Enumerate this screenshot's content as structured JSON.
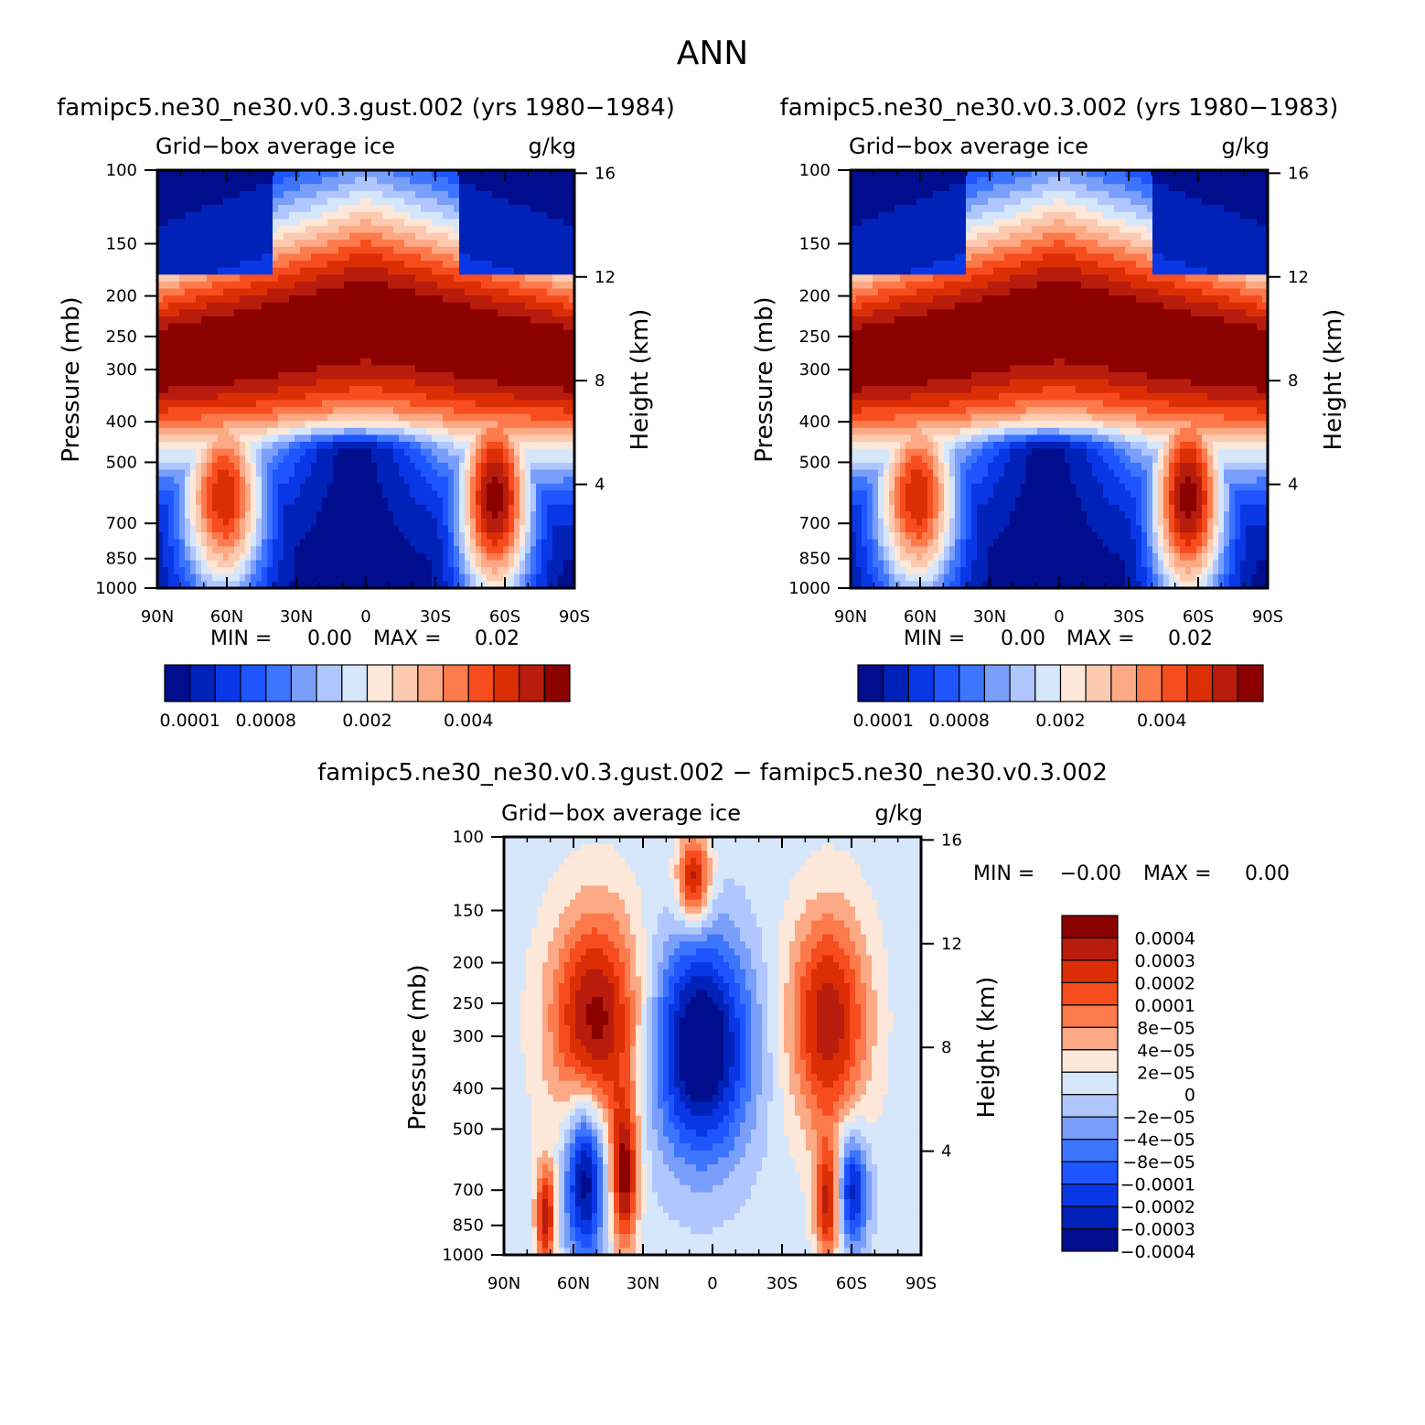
{
  "chart_data": {
    "type": "heatmap",
    "title": "ANN",
    "palette_seq": [
      "#000d8c",
      "#0022b8",
      "#0a37e6",
      "#1e55ff",
      "#3d75ff",
      "#7a9ffb",
      "#b0c6ff",
      "#d6e6fb",
      "#fde7d8",
      "#fccab0",
      "#fca985",
      "#fc7a4b",
      "#f74c1e",
      "#dc2e05",
      "#b81c0c",
      "#8b0000"
    ],
    "palette_diff": [
      "#000d8c",
      "#0022b8",
      "#0a37e6",
      "#1e55ff",
      "#3d75ff",
      "#7a9ffb",
      "#b0c6ff",
      "#d6e6fb",
      "#fde7d8",
      "#fca985",
      "#fc7a4b",
      "#f74c1e",
      "#dc2e05",
      "#b81c0c",
      "#8b0000"
    ],
    "panels": [
      {
        "id": "test",
        "title": "famipc5.ne30_ne30.v0.3.gust.002 (yrs 1980−1984)",
        "field": "Grid−box average ice",
        "units": "g/kg",
        "ylabel": "Pressure (mb)",
        "y2label": "Height (km)",
        "x_ticks": [
          "90N",
          "60N",
          "30N",
          "0",
          "30S",
          "60S",
          "90S"
        ],
        "p_ticks": [
          "100",
          "150",
          "200",
          "250",
          "300",
          "400",
          "500",
          "700",
          "850",
          "1000"
        ],
        "h_ticks": [
          "16",
          "12",
          "8",
          "4"
        ],
        "min_label": "MIN =",
        "min_value": "0.00",
        "max_label": "MAX =",
        "max_value": "0.02",
        "colorbar_labels": [
          "0.0001",
          "0.0008",
          "0.002",
          "0.004"
        ]
      },
      {
        "id": "control",
        "title": "famipc5.ne30_ne30.v0.3.002 (yrs 1980−1983)",
        "field": "Grid−box average ice",
        "units": "g/kg",
        "ylabel": "Pressure (mb)",
        "y2label": "Height (km)",
        "x_ticks": [
          "90N",
          "60N",
          "30N",
          "0",
          "30S",
          "60S",
          "90S"
        ],
        "p_ticks": [
          "100",
          "150",
          "200",
          "250",
          "300",
          "400",
          "500",
          "700",
          "850",
          "1000"
        ],
        "h_ticks": [
          "16",
          "12",
          "8",
          "4"
        ],
        "min_label": "MIN =",
        "min_value": "0.00",
        "max_label": "MAX =",
        "max_value": "0.02",
        "colorbar_labels": [
          "0.0001",
          "0.0008",
          "0.002",
          "0.004"
        ]
      },
      {
        "id": "diff",
        "title": "famipc5.ne30_ne30.v0.3.gust.002 − famipc5.ne30_ne30.v0.3.002",
        "field": "Grid−box average ice",
        "units": "g/kg",
        "ylabel": "Pressure (mb)",
        "y2label": "Height (km)",
        "x_ticks": [
          "90N",
          "60N",
          "30N",
          "0",
          "30S",
          "60S",
          "90S"
        ],
        "p_ticks": [
          "100",
          "150",
          "200",
          "250",
          "300",
          "400",
          "500",
          "700",
          "850",
          "1000"
        ],
        "h_ticks": [
          "16",
          "12",
          "8",
          "4"
        ],
        "min_label": "MIN =",
        "min_value": "−0.00",
        "max_label": "MAX =",
        "max_value": "0.00",
        "colorbar_labels": [
          "0.0004",
          "0.0003",
          "0.0002",
          "0.0001",
          "8e−05",
          "4e−05",
          "2e−05",
          "0",
          "−2e−05",
          "−4e−05",
          "−8e−05",
          "−0.0001",
          "−0.0002",
          "−0.0003",
          "−0.0004"
        ]
      }
    ]
  }
}
